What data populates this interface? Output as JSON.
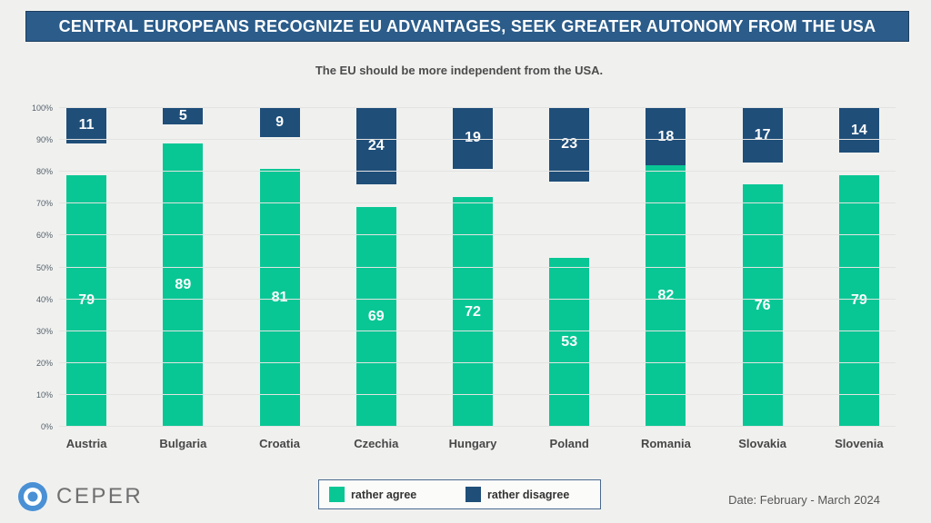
{
  "header": {
    "title": "CENTRAL EUROPEANS RECOGNIZE EU ADVANTAGES, SEEK GREATER AUTONOMY FROM THE USA"
  },
  "subtitle": "The EU should be more independent from the USA.",
  "chart_data": {
    "type": "bar",
    "title": "The EU should be more independent from the USA.",
    "categories": [
      "Austria",
      "Bulgaria",
      "Croatia",
      "Czechia",
      "Hungary",
      "Poland",
      "Romania",
      "Slovakia",
      "Slovenia"
    ],
    "series": [
      {
        "name": "rather agree",
        "color": "#09c795",
        "anchor": "bottom",
        "values": [
          79,
          89,
          81,
          69,
          72,
          53,
          82,
          76,
          79
        ]
      },
      {
        "name": "rather disagree",
        "color": "#1f4e79",
        "anchor": "top",
        "values": [
          11,
          5,
          9,
          24,
          19,
          23,
          18,
          17,
          14
        ]
      }
    ],
    "ylim": [
      0,
      100
    ],
    "yticks": [
      "0%",
      "10%",
      "20%",
      "30%",
      "40%",
      "50%",
      "60%",
      "70%",
      "80%",
      "90%",
      "100%"
    ],
    "grid": true,
    "legend_position": "bottom-center",
    "note": "agree bars rise from 0%; disagree bars hang down from 100%"
  },
  "footer": {
    "logo_text": "CEPER",
    "logo_color": "#4a90d5",
    "date": "Date: February - March 2024"
  }
}
